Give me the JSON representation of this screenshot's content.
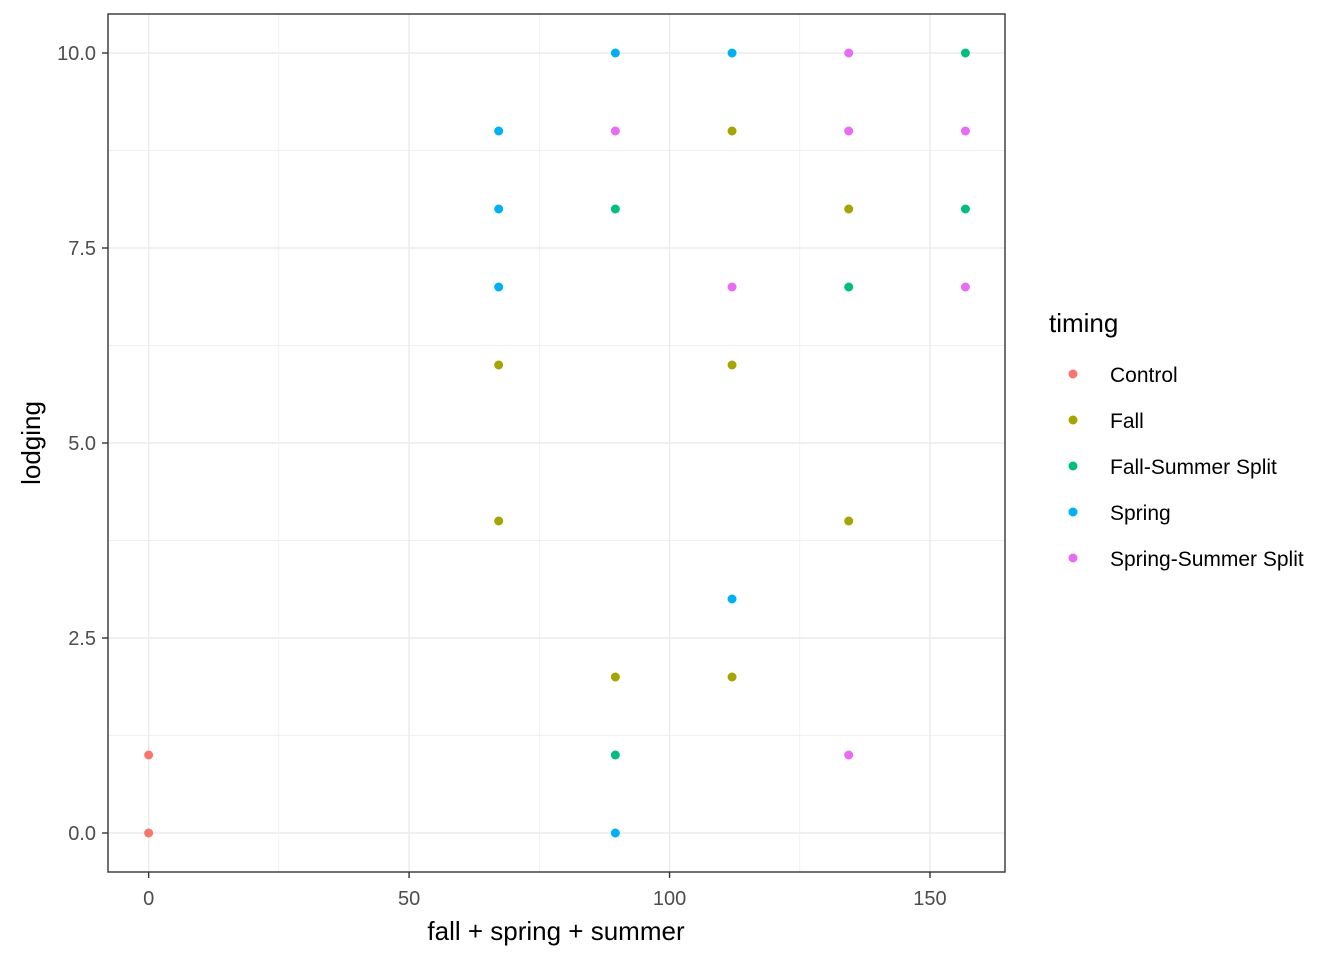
{
  "chart_data": {
    "type": "scatter",
    "xlabel": "fall + spring + summer",
    "ylabel": "lodging",
    "xlim": [
      -7.8,
      164.4
    ],
    "ylim": [
      -0.5,
      10.5
    ],
    "x_ticks": [
      0,
      50,
      100,
      150
    ],
    "x_tick_labels": [
      "0",
      "50",
      "100",
      "150"
    ],
    "x_minor_ticks": [
      25,
      75,
      125
    ],
    "y_ticks": [
      0,
      2.5,
      5,
      7.5,
      10
    ],
    "y_tick_labels": [
      "0.0",
      "2.5",
      "5.0",
      "7.5",
      "10.0"
    ],
    "y_minor_ticks": [
      1.25,
      3.75,
      6.25,
      8.75
    ],
    "grid": true,
    "legend": {
      "title": "timing",
      "position": "right"
    },
    "series": [
      {
        "name": "Control",
        "color": "#F8766D",
        "points": [
          {
            "x": 0,
            "y": 1
          },
          {
            "x": 0,
            "y": 0
          }
        ]
      },
      {
        "name": "Fall",
        "color": "#A3A500",
        "points": [
          {
            "x": 67.2,
            "y": 6
          },
          {
            "x": 67.2,
            "y": 4
          },
          {
            "x": 89.6,
            "y": 2
          },
          {
            "x": 112,
            "y": 9
          },
          {
            "x": 112,
            "y": 6
          },
          {
            "x": 112,
            "y": 2
          },
          {
            "x": 134.4,
            "y": 8
          },
          {
            "x": 134.4,
            "y": 4
          }
        ]
      },
      {
        "name": "Fall-Summer Split",
        "color": "#00BF7D",
        "points": [
          {
            "x": 89.6,
            "y": 8
          },
          {
            "x": 89.6,
            "y": 1
          },
          {
            "x": 134.4,
            "y": 7
          },
          {
            "x": 156.8,
            "y": 10
          },
          {
            "x": 156.8,
            "y": 8
          }
        ]
      },
      {
        "name": "Spring",
        "color": "#00B0F6",
        "points": [
          {
            "x": 67.2,
            "y": 9
          },
          {
            "x": 67.2,
            "y": 8
          },
          {
            "x": 67.2,
            "y": 7
          },
          {
            "x": 89.6,
            "y": 10
          },
          {
            "x": 89.6,
            "y": 0
          },
          {
            "x": 112,
            "y": 10
          },
          {
            "x": 112,
            "y": 3
          }
        ]
      },
      {
        "name": "Spring-Summer Split",
        "color": "#E76BF3",
        "points": [
          {
            "x": 89.6,
            "y": 9
          },
          {
            "x": 112,
            "y": 7
          },
          {
            "x": 134.4,
            "y": 10
          },
          {
            "x": 134.4,
            "y": 9
          },
          {
            "x": 134.4,
            "y": 1
          },
          {
            "x": 156.8,
            "y": 9
          },
          {
            "x": 156.8,
            "y": 7
          }
        ]
      }
    ]
  }
}
